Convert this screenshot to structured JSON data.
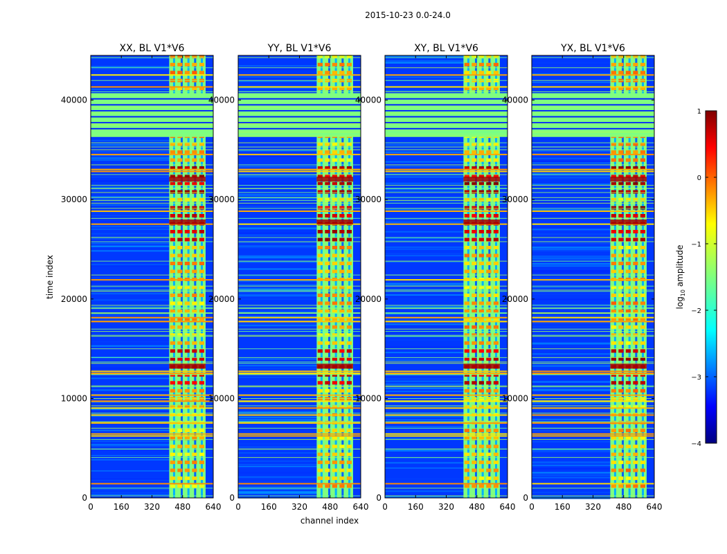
{
  "figure": {
    "suptitle": "2015-10-23 0.0-24.0",
    "xlabel": "channel index",
    "ylabel": "time index"
  },
  "chart_data": {
    "type": "heatmap",
    "title": "2015-10-23 0.0-24.0",
    "xlabel": "channel index",
    "ylabel": "time index",
    "xlim": [
      0,
      640
    ],
    "ylim": [
      0,
      44500
    ],
    "xticks": [
      0,
      160,
      320,
      480,
      640
    ],
    "yticks": [
      0,
      10000,
      20000,
      30000,
      40000
    ],
    "xtick_labels": [
      "0",
      "160",
      "320",
      "480",
      "640"
    ],
    "ytick_labels": [
      "0",
      "10000",
      "20000",
      "30000",
      "40000"
    ],
    "panels": [
      {
        "title": "XX, BL V1*V6"
      },
      {
        "title": "YY, BL V1*V6"
      },
      {
        "title": "XY, BL V1*V6"
      },
      {
        "title": "YX, BL V1*V6"
      }
    ],
    "colorbar": {
      "label": "log",
      "label_sub": "10",
      "label_rest": " amplitude",
      "colormap": "jet",
      "vmin": -4,
      "vmax": 1,
      "ticks": [
        1,
        0,
        -1,
        -2,
        -3,
        -4
      ],
      "tick_labels": [
        "1",
        "0",
        "−1",
        "−2",
        "−3",
        "−4"
      ]
    },
    "colormap_stops": [
      "#00007f",
      "#0000ff",
      "#007fff",
      "#00ffff",
      "#7fff7f",
      "#ffff00",
      "#ff7f00",
      "#ff0000",
      "#7f0000"
    ],
    "features": {
      "active_channel_band": [
        410,
        600
      ],
      "flagged_time_block": [
        36300,
        40700
      ],
      "strong_rfi_times": [
        13000,
        27500,
        31800
      ]
    }
  }
}
